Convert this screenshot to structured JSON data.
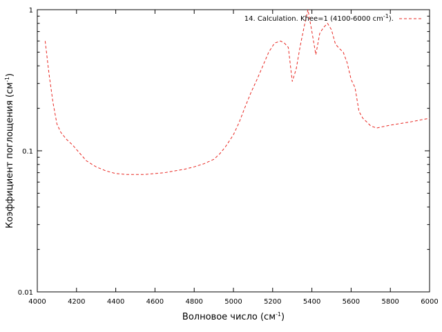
{
  "chart_data": {
    "type": "line",
    "title": "",
    "xlabel": "Волновое число (см",
    "xlabel_sup": "-1",
    "xlabel_suffix": ")",
    "ylabel": "Коэффициент поглощения (см",
    "ylabel_sup": "-1",
    "ylabel_suffix": ")",
    "xlim": [
      4000,
      6000
    ],
    "ylim": [
      0.01,
      1
    ],
    "y_scale": "log",
    "x_ticks": [
      "4000",
      "4200",
      "4400",
      "4600",
      "4800",
      "5000",
      "5200",
      "5400",
      "5600",
      "5800",
      "6000"
    ],
    "y_ticks": [
      "0.01",
      "0.1",
      "1"
    ],
    "grid": false,
    "legend_position": "top-right",
    "series": [
      {
        "name": "14. Calculation. Khee=1 (4100-6000 cm",
        "name_sup": "-1",
        "name_suffix": ").",
        "color": "#e8251f",
        "dash": "dashed",
        "x": [
          4040,
          4060,
          4080,
          4100,
          4120,
          4150,
          4180,
          4200,
          4250,
          4280,
          4300,
          4350,
          4400,
          4450,
          4500,
          4550,
          4600,
          4650,
          4700,
          4750,
          4800,
          4850,
          4900,
          4930,
          4960,
          5000,
          5030,
          5060,
          5090,
          5120,
          5150,
          5180,
          5210,
          5240,
          5260,
          5280,
          5300,
          5320,
          5340,
          5360,
          5380,
          5400,
          5420,
          5440,
          5460,
          5480,
          5500,
          5520,
          5540,
          5560,
          5580,
          5600,
          5620,
          5640,
          5660,
          5680,
          5700,
          5730,
          5760,
          5800,
          5850,
          5900,
          5950,
          6000
        ],
        "values": [
          0.6,
          0.35,
          0.22,
          0.155,
          0.135,
          0.12,
          0.11,
          0.102,
          0.085,
          0.08,
          0.077,
          0.072,
          0.069,
          0.068,
          0.068,
          0.068,
          0.069,
          0.07,
          0.072,
          0.074,
          0.077,
          0.081,
          0.087,
          0.095,
          0.107,
          0.13,
          0.16,
          0.205,
          0.26,
          0.32,
          0.4,
          0.5,
          0.58,
          0.6,
          0.58,
          0.54,
          0.31,
          0.38,
          0.55,
          0.75,
          1.0,
          0.7,
          0.48,
          0.68,
          0.75,
          0.8,
          0.72,
          0.57,
          0.53,
          0.5,
          0.42,
          0.32,
          0.28,
          0.19,
          0.17,
          0.16,
          0.15,
          0.145,
          0.148,
          0.152,
          0.156,
          0.16,
          0.165,
          0.17
        ]
      }
    ]
  }
}
